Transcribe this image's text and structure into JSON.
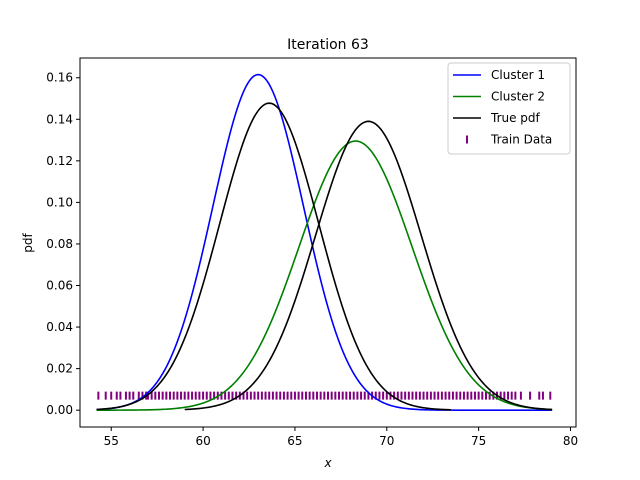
{
  "chart_data": {
    "type": "line",
    "title": "Iteration 63",
    "xlabel": "x",
    "ylabel": "pdf",
    "xlim": [
      53.3,
      80.3
    ],
    "ylim": [
      -0.0081,
      0.1695
    ],
    "xticks": [
      55,
      60,
      65,
      70,
      75,
      80
    ],
    "yticks": [
      0.0,
      0.02,
      0.04,
      0.06,
      0.08,
      0.1,
      0.12,
      0.14,
      0.16
    ],
    "ytick_labels": [
      "0.00",
      "0.02",
      "0.04",
      "0.06",
      "0.08",
      "0.10",
      "0.12",
      "0.14",
      "0.16"
    ],
    "legend_position": "upper right",
    "grid": false,
    "series": [
      {
        "name": "Cluster 1",
        "color": "#0000ff",
        "kind": "gaussian",
        "x_range": [
          54.2,
          79.0
        ],
        "mean": 63.0,
        "std": 2.47,
        "weight": 1.0
      },
      {
        "name": "Cluster 2",
        "color": "#008000",
        "kind": "gaussian",
        "x_range": [
          54.2,
          79.0
        ],
        "mean": 68.3,
        "std": 3.08,
        "weight": 1.0
      },
      {
        "name": "True pdf",
        "color": "#000000",
        "kind": "gaussian",
        "x_range": [
          54.2,
          73.5
        ],
        "mean": 63.6,
        "std": 2.7,
        "weight": 1.0
      },
      {
        "name": "True pdf (second component)",
        "color": "#000000",
        "kind": "gaussian",
        "x_range": [
          59.0,
          79.0
        ],
        "mean": 69.0,
        "std": 2.87,
        "weight": 1.0
      }
    ],
    "train_data": {
      "name": "Train Data",
      "color": "#800080",
      "y": 0.007,
      "x": [
        54.3,
        54.7,
        55.0,
        55.3,
        55.5,
        55.8,
        56.0,
        56.2,
        56.5,
        56.7,
        56.9,
        57.0,
        57.2,
        57.4,
        57.6,
        57.8,
        58.0,
        58.2,
        58.4,
        58.6,
        58.8,
        59.0,
        59.2,
        59.4,
        59.6,
        59.8,
        60.0,
        60.2,
        60.4,
        60.6,
        60.8,
        61.0,
        61.2,
        61.4,
        61.6,
        61.8,
        62.0,
        62.2,
        62.4,
        62.6,
        62.8,
        63.0,
        63.2,
        63.4,
        63.6,
        63.8,
        64.0,
        64.2,
        64.4,
        64.6,
        64.8,
        65.0,
        65.2,
        65.4,
        65.6,
        65.8,
        66.0,
        66.2,
        66.4,
        66.6,
        66.8,
        67.0,
        67.2,
        67.4,
        67.6,
        67.8,
        68.0,
        68.2,
        68.4,
        68.6,
        68.8,
        69.0,
        69.2,
        69.4,
        69.6,
        69.8,
        70.0,
        70.2,
        70.4,
        70.6,
        70.8,
        71.0,
        71.2,
        71.4,
        71.6,
        71.8,
        72.0,
        72.2,
        72.4,
        72.6,
        72.8,
        73.0,
        73.2,
        73.4,
        73.6,
        73.8,
        74.0,
        74.2,
        74.4,
        74.6,
        74.8,
        75.0,
        75.2,
        75.4,
        75.6,
        75.8,
        76.0,
        76.2,
        76.4,
        76.6,
        76.8,
        77.0,
        77.3,
        77.8,
        78.3,
        78.5,
        78.9
      ]
    }
  }
}
